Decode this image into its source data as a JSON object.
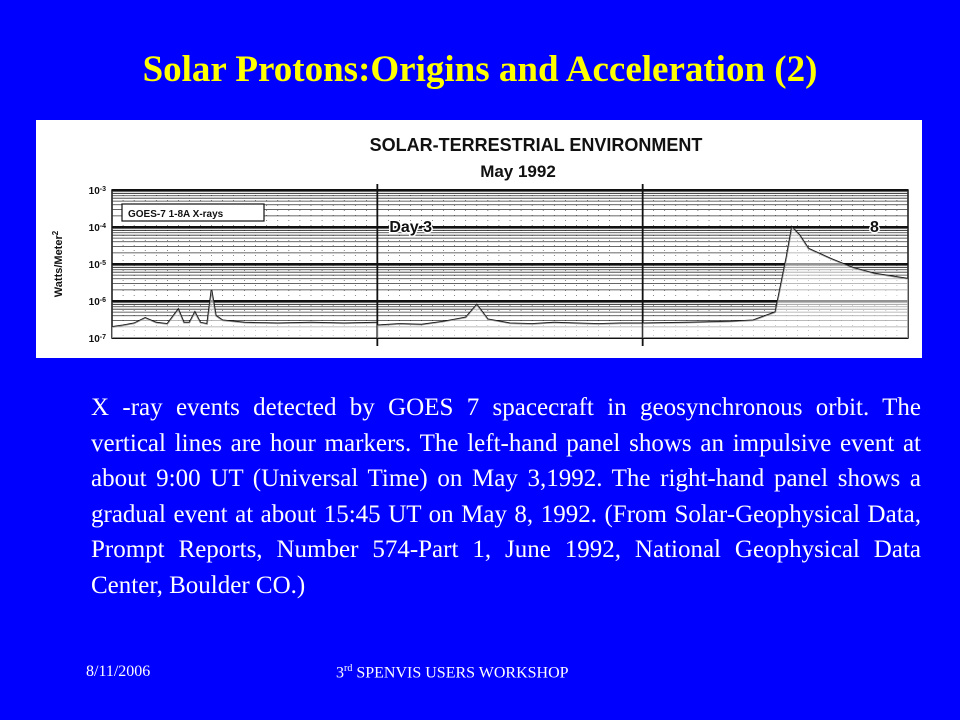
{
  "slide": {
    "title": "Solar Protons:Origins and Acceleration (2)",
    "caption": "X -ray events detected by GOES 7 spacecraft in geosynchronous orbit. The vertical lines are hour markers. The left-hand panel shows an impulsive event at about 9:00 UT (Universal Time) on May 3,1992. The right-hand panel shows a gradual event at about 15:45 UT on May 8, 1992. (From Solar-Geophysical Data, Prompt Reports, Number 574-Part 1, June 1992, National Geophysical Data Center, Boulder CO.)",
    "footer_date": "8/11/2006",
    "footer_event_num": "3",
    "footer_event_sup": "rd",
    "footer_event_rest": " SPENVIS USERS WORKSHOP"
  },
  "chart_data": {
    "type": "line",
    "title": "SOLAR-TERRESTRIAL ENVIRONMENT",
    "subtitle": "May 1992",
    "ylabel": "Watts/Meter",
    "ylabel_exp": "2",
    "legend": "GOES-7 1-8A X-rays",
    "yscale": "log",
    "ylim": [
      1e-07,
      0.001
    ],
    "yticks": [
      {
        "base": "10",
        "exp": "-3",
        "value": 0.001
      },
      {
        "base": "10",
        "exp": "-4",
        "value": 0.0001
      },
      {
        "base": "10",
        "exp": "-5",
        "value": 1e-05
      },
      {
        "base": "10",
        "exp": "-6",
        "value": 1e-06
      },
      {
        "base": "10",
        "exp": "-7",
        "value": 1e-07
      }
    ],
    "panels": [
      {
        "day_label": "",
        "hours": [
          0,
          24
        ],
        "series": [
          {
            "values": [
              [
                0,
                2e-07
              ],
              [
                1,
                2.2e-07
              ],
              [
                2,
                2.5e-07
              ],
              [
                3,
                3.5e-07
              ],
              [
                4,
                2.6e-07
              ],
              [
                5,
                2.4e-07
              ],
              [
                6,
                6e-07
              ],
              [
                6.5,
                2.6e-07
              ],
              [
                7,
                2.6e-07
              ],
              [
                7.5,
                5e-07
              ],
              [
                8,
                2.6e-07
              ],
              [
                8.6,
                2.4e-07
              ],
              [
                9,
                2e-06
              ],
              [
                9.4,
                4e-07
              ],
              [
                10,
                3e-07
              ],
              [
                12,
                2.6e-07
              ],
              [
                15,
                2.5e-07
              ],
              [
                18,
                2.6e-07
              ],
              [
                21,
                2.5e-07
              ],
              [
                24,
                2.6e-07
              ]
            ]
          }
        ]
      },
      {
        "day_label": "Day 3",
        "hours": [
          0,
          24
        ],
        "series": [
          {
            "values": [
              [
                0,
                2.2e-07
              ],
              [
                2,
                2.4e-07
              ],
              [
                4,
                2.3e-07
              ],
              [
                6,
                2.8e-07
              ],
              [
                8,
                3.6e-07
              ],
              [
                9,
                8e-07
              ],
              [
                10,
                3.2e-07
              ],
              [
                12,
                2.5e-07
              ],
              [
                14,
                2.4e-07
              ],
              [
                16,
                2.6e-07
              ],
              [
                18,
                2.5e-07
              ],
              [
                20,
                2.4e-07
              ],
              [
                22,
                2.5e-07
              ],
              [
                24,
                2.5e-07
              ]
            ]
          }
        ]
      },
      {
        "day_label": "8",
        "hours": [
          0,
          24
        ],
        "series": [
          {
            "values": [
              [
                0,
                2.5e-07
              ],
              [
                4,
                2.6e-07
              ],
              [
                8,
                2.8e-07
              ],
              [
                10,
                3e-07
              ],
              [
                12,
                5e-07
              ],
              [
                13,
                1.5e-05
              ],
              [
                13.5,
                0.0001
              ],
              [
                14.2,
                6e-05
              ],
              [
                15,
                2.6e-05
              ],
              [
                17,
                1.4e-05
              ],
              [
                19,
                8e-06
              ],
              [
                21,
                5.5e-06
              ],
              [
                24,
                4e-06
              ]
            ]
          }
        ]
      }
    ],
    "grid": true,
    "legend_position": "top-left"
  }
}
